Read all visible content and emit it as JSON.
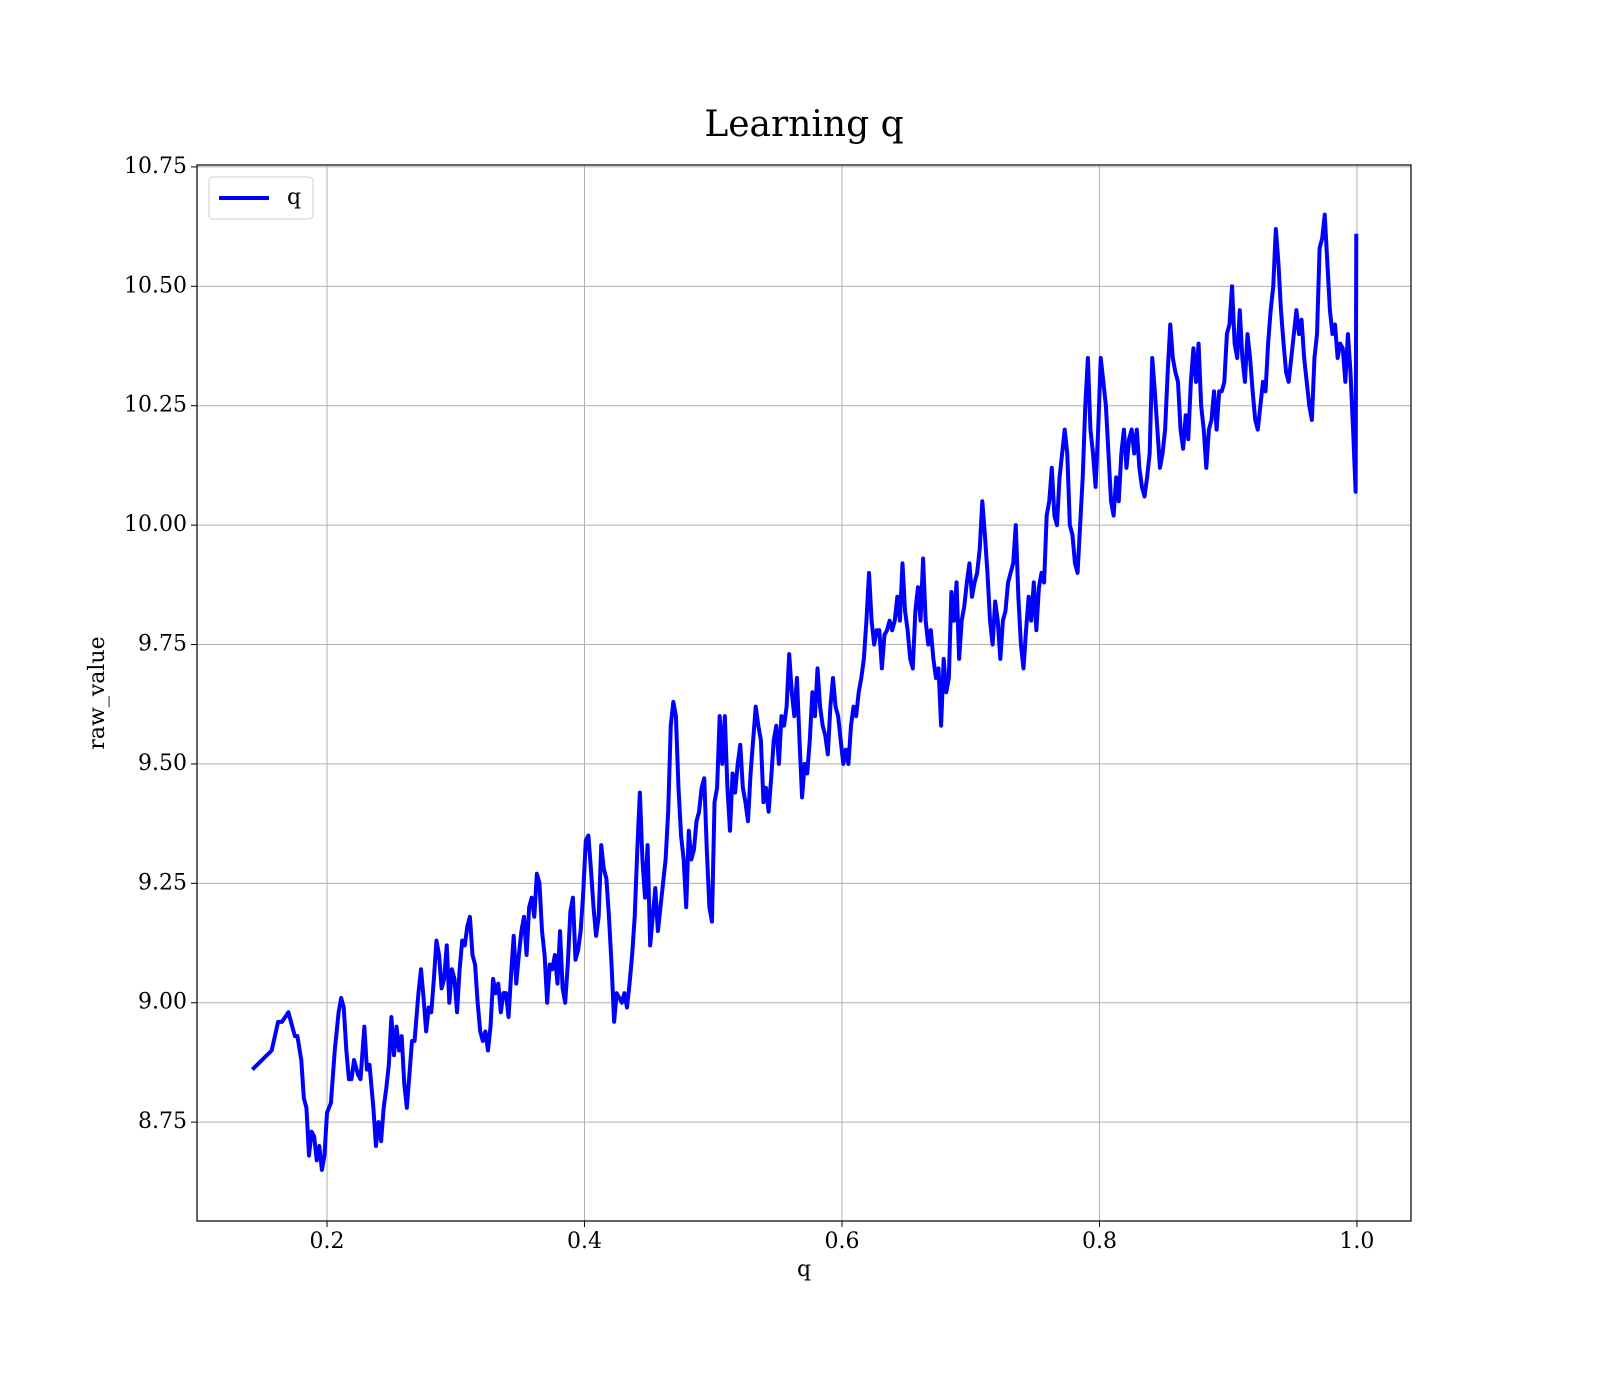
{
  "chart_data": {
    "type": "line",
    "title": "Learning q",
    "x_label": "q",
    "y_label": "raw_value",
    "xlim": [
      0.099,
      1.042
    ],
    "ylim": [
      8.543,
      10.754
    ],
    "xticks": [
      0.2,
      0.4,
      0.6,
      0.8,
      {
        "value": 1.0,
        "label": "1.0"
      }
    ],
    "yticks": [
      8.75,
      {
        "value": 9.0,
        "label": "9.00"
      },
      9.25,
      {
        "value": 9.5,
        "label": "9.50"
      },
      9.75,
      {
        "value": 10.0,
        "label": "10.00"
      },
      10.25,
      {
        "value": 10.5,
        "label": "10.50"
      },
      10.75
    ],
    "grid": true,
    "legend": "upper left",
    "x": [
      0.142,
      0.157,
      0.162,
      0.165,
      0.17,
      0.175,
      0.177,
      0.18,
      0.182,
      0.184,
      0.186,
      0.188,
      0.19,
      0.192,
      0.194,
      0.196,
      0.198,
      0.2,
      0.203,
      0.206,
      0.209,
      0.211,
      0.213,
      0.215,
      0.217,
      0.219,
      0.221,
      0.224,
      0.226,
      0.229,
      0.231,
      0.233,
      0.236,
      0.238,
      0.24,
      0.242,
      0.244,
      0.246,
      0.248,
      0.25,
      0.252,
      0.254,
      0.256,
      0.258,
      0.26,
      0.262,
      0.264,
      0.266,
      0.268,
      0.271,
      0.273,
      0.275,
      0.277,
      0.279,
      0.281,
      0.283,
      0.285,
      0.287,
      0.289,
      0.291,
      0.293,
      0.295,
      0.297,
      0.299,
      0.301,
      0.303,
      0.305,
      0.307,
      0.309,
      0.311,
      0.313,
      0.315,
      0.317,
      0.319,
      0.321,
      0.323,
      0.325,
      0.327,
      0.329,
      0.331,
      0.333,
      0.335,
      0.337,
      0.339,
      0.341,
      0.343,
      0.345,
      0.347,
      0.349,
      0.351,
      0.353,
      0.355,
      0.357,
      0.359,
      0.361,
      0.363,
      0.365,
      0.367,
      0.369,
      0.371,
      0.373,
      0.375,
      0.377,
      0.379,
      0.381,
      0.383,
      0.385,
      0.387,
      0.389,
      0.391,
      0.393,
      0.395,
      0.397,
      0.399,
      0.401,
      0.403,
      0.405,
      0.407,
      0.409,
      0.411,
      0.413,
      0.415,
      0.417,
      0.419,
      0.421,
      0.423,
      0.425,
      0.427,
      0.429,
      0.431,
      0.433,
      0.435,
      0.437,
      0.439,
      0.441,
      0.443,
      0.445,
      0.447,
      0.449,
      0.451,
      0.453,
      0.455,
      0.457,
      0.459,
      0.461,
      0.463,
      0.465,
      0.467,
      0.469,
      0.471,
      0.473,
      0.475,
      0.477,
      0.479,
      0.481,
      0.483,
      0.485,
      0.487,
      0.489,
      0.491,
      0.493,
      0.495,
      0.497,
      0.499,
      0.501,
      0.503,
      0.505,
      0.507,
      0.509,
      0.511,
      0.513,
      0.515,
      0.517,
      0.519,
      0.521,
      0.523,
      0.525,
      0.527,
      0.529,
      0.531,
      0.533,
      0.535,
      0.537,
      0.539,
      0.541,
      0.543,
      0.545,
      0.547,
      0.549,
      0.551,
      0.553,
      0.555,
      0.557,
      0.559,
      0.561,
      0.563,
      0.565,
      0.567,
      0.569,
      0.571,
      0.573,
      0.575,
      0.577,
      0.579,
      0.581,
      0.583,
      0.585,
      0.587,
      0.589,
      0.591,
      0.593,
      0.595,
      0.597,
      0.599,
      0.601,
      0.603,
      0.605,
      0.607,
      0.609,
      0.611,
      0.613,
      0.615,
      0.617,
      0.619,
      0.621,
      0.623,
      0.625,
      0.627,
      0.629,
      0.631,
      0.633,
      0.635,
      0.637,
      0.639,
      0.641,
      0.643,
      0.645,
      0.647,
      0.649,
      0.651,
      0.653,
      0.655,
      0.657,
      0.659,
      0.661,
      0.663,
      0.665,
      0.667,
      0.669,
      0.671,
      0.673,
      0.675,
      0.677,
      0.679,
      0.681,
      0.683,
      0.685,
      0.687,
      0.689,
      0.691,
      0.693,
      0.695,
      0.697,
      0.699,
      0.701,
      0.703,
      0.705,
      0.707,
      0.709,
      0.711,
      0.713,
      0.715,
      0.717,
      0.719,
      0.721,
      0.723,
      0.725,
      0.727,
      0.729,
      0.731,
      0.733,
      0.735,
      0.737,
      0.739,
      0.741,
      0.743,
      0.745,
      0.747,
      0.749,
      0.751,
      0.753,
      0.755,
      0.757,
      0.759,
      0.761,
      0.763,
      0.765,
      0.767,
      0.769,
      0.771,
      0.773,
      0.775,
      0.777,
      0.779,
      0.781,
      0.783,
      0.785,
      0.787,
      0.789,
      0.791,
      0.793,
      0.795,
      0.797,
      0.799,
      0.801,
      0.803,
      0.805,
      0.807,
      0.809,
      0.811,
      0.813,
      0.815,
      0.817,
      0.819,
      0.821,
      0.823,
      0.825,
      0.827,
      0.829,
      0.831,
      0.833,
      0.835,
      0.837,
      0.839,
      0.841,
      0.843,
      0.845,
      0.847,
      0.849,
      0.851,
      0.853,
      0.855,
      0.857,
      0.859,
      0.861,
      0.863,
      0.865,
      0.867,
      0.869,
      0.871,
      0.873,
      0.875,
      0.877,
      0.879,
      0.881,
      0.883,
      0.885,
      0.887,
      0.889,
      0.891,
      0.893,
      0.895,
      0.897,
      0.899,
      0.901,
      0.903,
      0.905,
      0.907,
      0.909,
      0.911,
      0.913,
      0.915,
      0.917,
      0.919,
      0.921,
      0.923,
      0.925,
      0.927,
      0.929,
      0.931,
      0.933,
      0.935,
      0.937,
      0.939,
      0.941,
      0.943,
      0.945,
      0.947,
      0.949,
      0.951,
      0.953,
      0.955,
      0.957,
      0.959,
      0.961,
      0.963,
      0.965,
      0.967,
      0.969,
      0.971,
      0.973,
      0.975,
      0.977,
      0.979,
      0.981,
      0.983,
      0.985,
      0.987,
      0.989,
      0.991,
      0.993,
      0.995,
      0.997,
      0.999,
      0.9995
    ],
    "series": [
      {
        "name": "q",
        "color": "#0000ff",
        "values": [
          8.86,
          8.9,
          8.96,
          8.96,
          8.98,
          8.93,
          8.93,
          8.88,
          8.8,
          8.78,
          8.68,
          8.73,
          8.72,
          8.67,
          8.7,
          8.65,
          8.68,
          8.77,
          8.79,
          8.9,
          8.98,
          9.01,
          8.99,
          8.9,
          8.84,
          8.84,
          8.88,
          8.85,
          8.84,
          8.95,
          8.86,
          8.87,
          8.78,
          8.7,
          8.75,
          8.71,
          8.78,
          8.82,
          8.87,
          8.97,
          8.89,
          8.95,
          8.9,
          8.93,
          8.83,
          8.78,
          8.85,
          8.92,
          8.92,
          9.02,
          9.07,
          9.01,
          8.94,
          8.99,
          8.98,
          9.05,
          9.13,
          9.1,
          9.03,
          9.05,
          9.12,
          9.0,
          9.07,
          9.05,
          8.98,
          9.07,
          9.13,
          9.12,
          9.16,
          9.18,
          9.1,
          9.08,
          9.0,
          8.94,
          8.92,
          8.94,
          8.9,
          8.95,
          9.05,
          9.02,
          9.04,
          8.98,
          9.02,
          9.02,
          8.97,
          9.06,
          9.14,
          9.04,
          9.1,
          9.15,
          9.18,
          9.1,
          9.2,
          9.22,
          9.18,
          9.27,
          9.25,
          9.15,
          9.1,
          9.0,
          9.08,
          9.07,
          9.1,
          9.04,
          9.15,
          9.03,
          9.0,
          9.08,
          9.19,
          9.22,
          9.09,
          9.11,
          9.15,
          9.23,
          9.34,
          9.35,
          9.28,
          9.2,
          9.14,
          9.18,
          9.33,
          9.28,
          9.26,
          9.18,
          9.08,
          8.96,
          9.02,
          9.01,
          9.0,
          9.02,
          8.99,
          9.04,
          9.1,
          9.18,
          9.32,
          9.44,
          9.3,
          9.22,
          9.33,
          9.12,
          9.18,
          9.24,
          9.15,
          9.2,
          9.25,
          9.3,
          9.4,
          9.58,
          9.63,
          9.6,
          9.45,
          9.35,
          9.3,
          9.2,
          9.36,
          9.3,
          9.32,
          9.38,
          9.4,
          9.45,
          9.47,
          9.32,
          9.2,
          9.17,
          9.42,
          9.45,
          9.6,
          9.5,
          9.6,
          9.45,
          9.36,
          9.48,
          9.44,
          9.5,
          9.54,
          9.45,
          9.42,
          9.38,
          9.48,
          9.55,
          9.62,
          9.58,
          9.55,
          9.42,
          9.45,
          9.4,
          9.47,
          9.55,
          9.58,
          9.5,
          9.6,
          9.58,
          9.62,
          9.73,
          9.65,
          9.6,
          9.68,
          9.55,
          9.43,
          9.5,
          9.48,
          9.55,
          9.65,
          9.6,
          9.7,
          9.62,
          9.58,
          9.56,
          9.52,
          9.62,
          9.68,
          9.62,
          9.6,
          9.55,
          9.5,
          9.53,
          9.5,
          9.58,
          9.62,
          9.6,
          9.65,
          9.68,
          9.72,
          9.8,
          9.9,
          9.8,
          9.75,
          9.78,
          9.78,
          9.7,
          9.77,
          9.78,
          9.8,
          9.78,
          9.8,
          9.85,
          9.8,
          9.92,
          9.82,
          9.78,
          9.72,
          9.7,
          9.82,
          9.87,
          9.8,
          9.93,
          9.8,
          9.75,
          9.78,
          9.72,
          9.68,
          9.7,
          9.58,
          9.72,
          9.65,
          9.68,
          9.86,
          9.8,
          9.88,
          9.72,
          9.8,
          9.83,
          9.88,
          9.92,
          9.85,
          9.88,
          9.9,
          9.95,
          10.05,
          9.98,
          9.9,
          9.8,
          9.75,
          9.84,
          9.8,
          9.72,
          9.8,
          9.82,
          9.88,
          9.9,
          9.92,
          10.0,
          9.85,
          9.75,
          9.7,
          9.78,
          9.85,
          9.8,
          9.88,
          9.78,
          9.87,
          9.9,
          9.88,
          10.02,
          10.05,
          10.12,
          10.02,
          10.0,
          10.1,
          10.15,
          10.2,
          10.15,
          10.0,
          9.98,
          9.92,
          9.9,
          10.0,
          10.1,
          10.25,
          10.35,
          10.2,
          10.15,
          10.08,
          10.2,
          10.35,
          10.3,
          10.25,
          10.15,
          10.05,
          10.02,
          10.1,
          10.05,
          10.15,
          10.2,
          10.12,
          10.18,
          10.2,
          10.15,
          10.2,
          10.12,
          10.08,
          10.06,
          10.1,
          10.15,
          10.35,
          10.28,
          10.2,
          10.12,
          10.15,
          10.2,
          10.32,
          10.42,
          10.35,
          10.32,
          10.3,
          10.2,
          10.16,
          10.23,
          10.18,
          10.3,
          10.37,
          10.3,
          10.38,
          10.25,
          10.2,
          10.12,
          10.2,
          10.22,
          10.28,
          10.2,
          10.28,
          10.28,
          10.3,
          10.4,
          10.42,
          10.5,
          10.38,
          10.35,
          10.45,
          10.35,
          10.3,
          10.4,
          10.35,
          10.28,
          10.22,
          10.2,
          10.25,
          10.3,
          10.28,
          10.38,
          10.45,
          10.5,
          10.62,
          10.55,
          10.45,
          10.38,
          10.32,
          10.3,
          10.35,
          10.4,
          10.45,
          10.4,
          10.43,
          10.35,
          10.3,
          10.25,
          10.22,
          10.35,
          10.4,
          10.58,
          10.6,
          10.65,
          10.55,
          10.45,
          10.4,
          10.42,
          10.35,
          10.38,
          10.37,
          10.3,
          10.4,
          10.32,
          10.2,
          10.07,
          10.61
        ]
      }
    ]
  }
}
